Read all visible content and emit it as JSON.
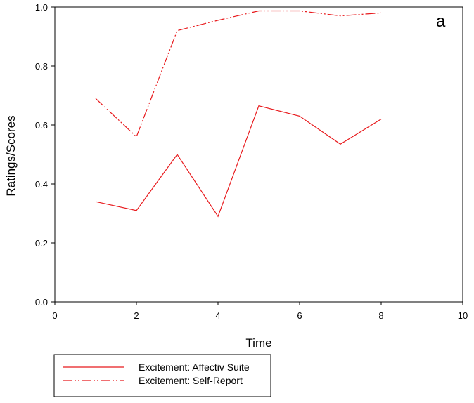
{
  "chart_data": {
    "type": "line",
    "panel_label": "a",
    "title": "",
    "xlabel": "Time",
    "ylabel": "Ratings/Scores",
    "xlim": [
      0,
      10
    ],
    "ylim": [
      0.0,
      1.0
    ],
    "x_ticks": [
      "0",
      "2",
      "4",
      "6",
      "8",
      "10"
    ],
    "y_ticks": [
      "0.0",
      "0.2",
      "0.4",
      "0.6",
      "0.8",
      "1.0"
    ],
    "grid": false,
    "legend_position": "bottom-left, below plot",
    "x": [
      1,
      2,
      3,
      4,
      5,
      6,
      7,
      8
    ],
    "series": [
      {
        "name": "Excitement: Affectiv Suite",
        "values": [
          0.34,
          0.31,
          0.5,
          0.29,
          0.665,
          0.63,
          0.535,
          0.62
        ],
        "color": "#e8191c",
        "line_style": "solid"
      },
      {
        "name": "Excitement: Self-Report",
        "values": [
          0.69,
          0.56,
          0.92,
          0.955,
          0.987,
          0.987,
          0.97,
          0.98
        ],
        "color": "#e8191c",
        "line_style": "dash-dot-dot"
      }
    ]
  }
}
